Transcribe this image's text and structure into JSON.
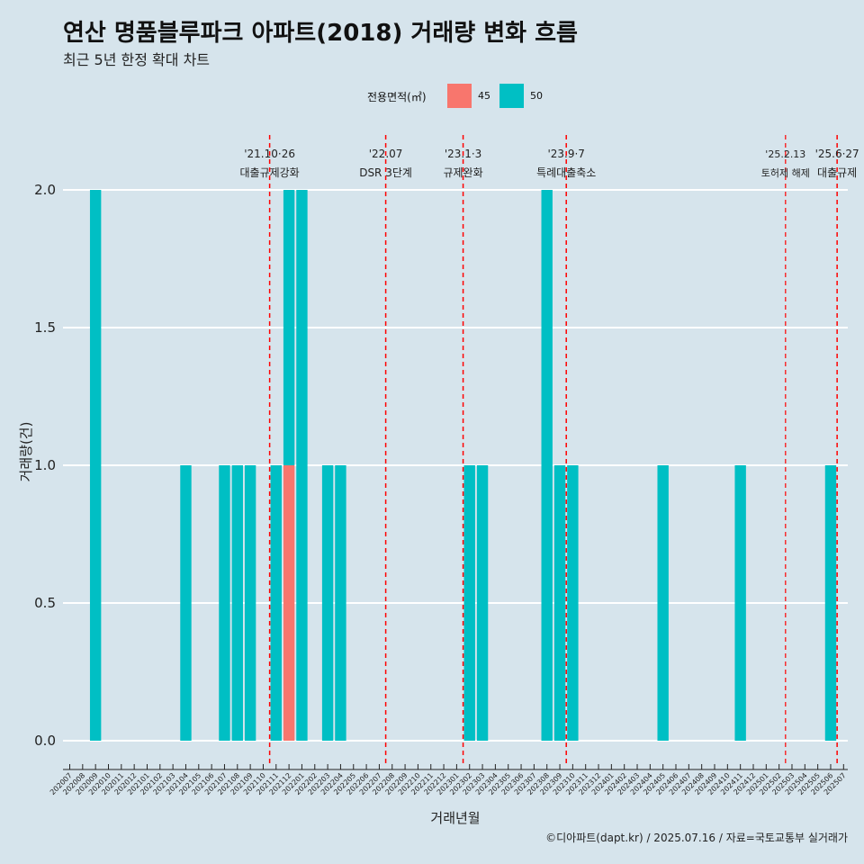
{
  "header": {
    "title": "연산 명품블루파크 아파트(2018) 거래량 변화 흐름",
    "subtitle": "최근 5년 한정 확대 차트"
  },
  "legend": {
    "title": "전용면적(㎡)",
    "items": [
      {
        "label": "45",
        "color": "#f8766d"
      },
      {
        "label": "50",
        "color": "#00bfc4"
      }
    ]
  },
  "caption": "©디아파트(dapt.kr) / 2025.07.16 / 자료=국토교통부 실거래가",
  "chart_data": {
    "type": "bar",
    "stacked": true,
    "xlabel": "거래년월",
    "ylabel": "거래량(건)",
    "ylim": [
      0,
      2
    ],
    "yticks": [
      "0.0",
      "0.5",
      "1.0",
      "1.5",
      "2.0"
    ],
    "grid": "horizontal",
    "legend_position": "top",
    "categories": [
      "202007",
      "202008",
      "202009",
      "202010",
      "202011",
      "202012",
      "202101",
      "202102",
      "202103",
      "202104",
      "202105",
      "202106",
      "202107",
      "202108",
      "202109",
      "202110",
      "202111",
      "202112",
      "202201",
      "202202",
      "202203",
      "202204",
      "202205",
      "202206",
      "202207",
      "202208",
      "202209",
      "202210",
      "202211",
      "202212",
      "202301",
      "202302",
      "202303",
      "202304",
      "202305",
      "202306",
      "202307",
      "202308",
      "202309",
      "202310",
      "202311",
      "202312",
      "202401",
      "202402",
      "202403",
      "202404",
      "202405",
      "202406",
      "202407",
      "202408",
      "202409",
      "202410",
      "202411",
      "202412",
      "202501",
      "202502",
      "202503",
      "202504",
      "202505",
      "202506",
      "202507"
    ],
    "bars": [
      {
        "x": "202009",
        "area": "50",
        "value": 2
      },
      {
        "x": "202104",
        "area": "50",
        "value": 1
      },
      {
        "x": "202107",
        "area": "50",
        "value": 1
      },
      {
        "x": "202108",
        "area": "50",
        "value": 1
      },
      {
        "x": "202109",
        "area": "50",
        "value": 1
      },
      {
        "x": "202111",
        "area": "50",
        "value": 1
      },
      {
        "x": "202112",
        "area": "45",
        "value": 1
      },
      {
        "x": "202112",
        "area": "50",
        "value": 1
      },
      {
        "x": "202201",
        "area": "50",
        "value": 2
      },
      {
        "x": "202203",
        "area": "50",
        "value": 1
      },
      {
        "x": "202204",
        "area": "50",
        "value": 1
      },
      {
        "x": "202302",
        "area": "50",
        "value": 1
      },
      {
        "x": "202303",
        "area": "50",
        "value": 1
      },
      {
        "x": "202308",
        "area": "50",
        "value": 2
      },
      {
        "x": "202309",
        "area": "50",
        "value": 1
      },
      {
        "x": "202310",
        "area": "50",
        "value": 1
      },
      {
        "x": "202405",
        "area": "50",
        "value": 1
      },
      {
        "x": "202411",
        "area": "50",
        "value": 1
      },
      {
        "x": "202506",
        "area": "50",
        "value": 1
      }
    ],
    "events": [
      {
        "x": 15.5,
        "date": "'21.10·26",
        "label": "대출규제강화",
        "size": "large"
      },
      {
        "x": 24.5,
        "date": "'22.07",
        "label": "DSR 3단계",
        "size": "large"
      },
      {
        "x": 30.5,
        "date": "'23.1·3",
        "label": "규제완화",
        "size": "large"
      },
      {
        "x": 38.5,
        "date": "'23.9·7",
        "label": "특례대출축소",
        "size": "large"
      },
      {
        "x": 55.5,
        "date": "'25.2.13",
        "label": "토허제 해제",
        "size": "small"
      },
      {
        "x": 59.5,
        "date": "'25.6·27",
        "label": "대출규제",
        "size": "large"
      }
    ]
  }
}
